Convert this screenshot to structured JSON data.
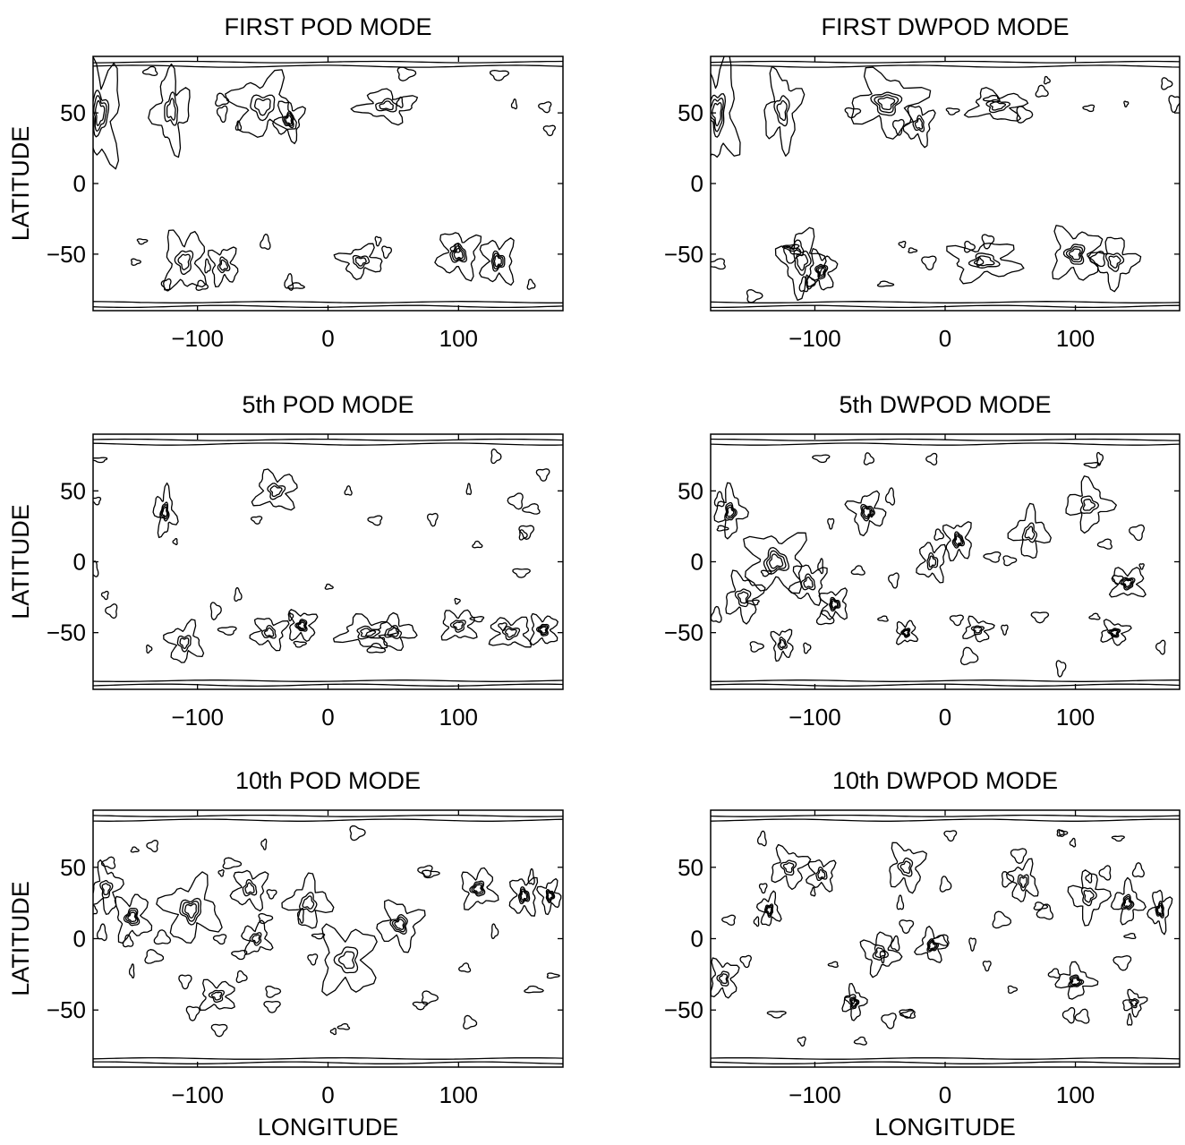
{
  "chart_data": [
    {
      "type": "contour",
      "title": "FIRST POD MODE",
      "ylabel": "LATITUDE",
      "xlabel": "",
      "x_ticks": [
        -100,
        0,
        100
      ],
      "y_ticks": [
        50,
        0,
        -50
      ],
      "xlim": [
        -180,
        180
      ],
      "ylim": [
        -90,
        90
      ],
      "grid": false,
      "features": [
        [
          -175,
          50,
          6,
          14
        ],
        [
          -120,
          52,
          5,
          10
        ],
        [
          -50,
          55,
          9,
          8
        ],
        [
          -30,
          45,
          4,
          5
        ],
        [
          45,
          55,
          8,
          4
        ],
        [
          -110,
          -55,
          6,
          8
        ],
        [
          -80,
          -58,
          4,
          5
        ],
        [
          25,
          -55,
          6,
          4
        ],
        [
          100,
          -50,
          6,
          6
        ],
        [
          130,
          -55,
          5,
          6
        ]
      ]
    },
    {
      "type": "contour",
      "title": "FIRST DWPOD MODE",
      "ylabel": "",
      "xlabel": "",
      "x_ticks": [
        -100,
        0,
        100
      ],
      "y_ticks": [
        50,
        0,
        -50
      ],
      "xlim": [
        -180,
        180
      ],
      "ylim": [
        -90,
        90
      ],
      "grid": false,
      "features": [
        [
          -175,
          50,
          6,
          14
        ],
        [
          -125,
          52,
          5,
          10
        ],
        [
          -45,
          57,
          10,
          8
        ],
        [
          -20,
          42,
          4,
          5
        ],
        [
          40,
          55,
          8,
          4
        ],
        [
          -110,
          -55,
          6,
          8
        ],
        [
          -95,
          -62,
          4,
          5
        ],
        [
          30,
          -55,
          10,
          5
        ],
        [
          100,
          -50,
          7,
          7
        ],
        [
          130,
          -55,
          6,
          6
        ]
      ]
    },
    {
      "type": "contour",
      "title": "5th POD MODE",
      "ylabel": "LATITUDE",
      "xlabel": "",
      "x_ticks": [
        -100,
        0,
        100
      ],
      "y_ticks": [
        50,
        0,
        -50
      ],
      "xlim": [
        -180,
        180
      ],
      "ylim": [
        -90,
        90
      ],
      "grid": false,
      "features": [
        [
          -125,
          35,
          3,
          6
        ],
        [
          -40,
          50,
          6,
          5
        ],
        [
          -110,
          -57,
          5,
          5
        ],
        [
          -45,
          -50,
          5,
          4
        ],
        [
          -20,
          -45,
          4,
          4
        ],
        [
          30,
          -50,
          8,
          4
        ],
        [
          50,
          -50,
          6,
          4
        ],
        [
          100,
          -45,
          5,
          4
        ],
        [
          140,
          -50,
          6,
          4
        ],
        [
          165,
          -48,
          4,
          4
        ]
      ]
    },
    {
      "type": "contour",
      "title": "5th DWPOD MODE",
      "ylabel": "",
      "xlabel": "",
      "x_ticks": [
        -100,
        0,
        100
      ],
      "y_ticks": [
        50,
        0,
        -50
      ],
      "xlim": [
        -180,
        180
      ],
      "ylim": [
        -90,
        90
      ],
      "grid": false,
      "features": [
        [
          -165,
          35,
          4,
          6
        ],
        [
          -130,
          0,
          9,
          8
        ],
        [
          -155,
          -25,
          5,
          6
        ],
        [
          -105,
          -15,
          5,
          5
        ],
        [
          -85,
          -30,
          4,
          4
        ],
        [
          -125,
          -58,
          3,
          4
        ],
        [
          -60,
          35,
          5,
          5
        ],
        [
          -10,
          0,
          4,
          5
        ],
        [
          10,
          15,
          4,
          5
        ],
        [
          65,
          20,
          5,
          6
        ],
        [
          110,
          40,
          6,
          6
        ],
        [
          140,
          -15,
          5,
          4
        ],
        [
          -30,
          -50,
          3,
          3
        ],
        [
          25,
          -48,
          4,
          3
        ],
        [
          130,
          -50,
          4,
          3
        ]
      ]
    },
    {
      "type": "contour",
      "title": "10th POD MODE",
      "ylabel": "LATITUDE",
      "xlabel": "LONGITUDE",
      "x_ticks": [
        -100,
        0,
        100
      ],
      "y_ticks": [
        50,
        0,
        -50
      ],
      "xlim": [
        -180,
        180
      ],
      "ylim": [
        -90,
        90
      ],
      "grid": false,
      "features": [
        [
          -170,
          35,
          4,
          6
        ],
        [
          -150,
          15,
          5,
          6
        ],
        [
          -105,
          20,
          8,
          8
        ],
        [
          -60,
          35,
          5,
          5
        ],
        [
          -55,
          0,
          4,
          4
        ],
        [
          -15,
          25,
          6,
          6
        ],
        [
          15,
          -15,
          8,
          9
        ],
        [
          55,
          10,
          6,
          6
        ],
        [
          115,
          35,
          5,
          5
        ],
        [
          150,
          30,
          4,
          5
        ],
        [
          -85,
          -40,
          5,
          4
        ],
        [
          170,
          30,
          3,
          4
        ]
      ]
    },
    {
      "type": "contour",
      "title": "10th DWPOD MODE",
      "ylabel": "",
      "xlabel": "LONGITUDE",
      "x_ticks": [
        -100,
        0,
        100
      ],
      "y_ticks": [
        50,
        0,
        -50
      ],
      "xlim": [
        -180,
        180
      ],
      "ylim": [
        -90,
        90
      ],
      "grid": false,
      "features": [
        [
          -170,
          -28,
          4,
          5
        ],
        [
          -135,
          20,
          3,
          4
        ],
        [
          -120,
          50,
          5,
          5
        ],
        [
          -95,
          45,
          4,
          4
        ],
        [
          -50,
          -10,
          5,
          5
        ],
        [
          -30,
          50,
          5,
          6
        ],
        [
          -10,
          -5,
          4,
          4
        ],
        [
          -70,
          -45,
          3,
          4
        ],
        [
          60,
          40,
          4,
          5
        ],
        [
          110,
          30,
          5,
          6
        ],
        [
          140,
          25,
          4,
          5
        ],
        [
          100,
          -30,
          5,
          4
        ],
        [
          145,
          -45,
          3,
          3
        ],
        [
          165,
          20,
          3,
          5
        ]
      ]
    }
  ]
}
